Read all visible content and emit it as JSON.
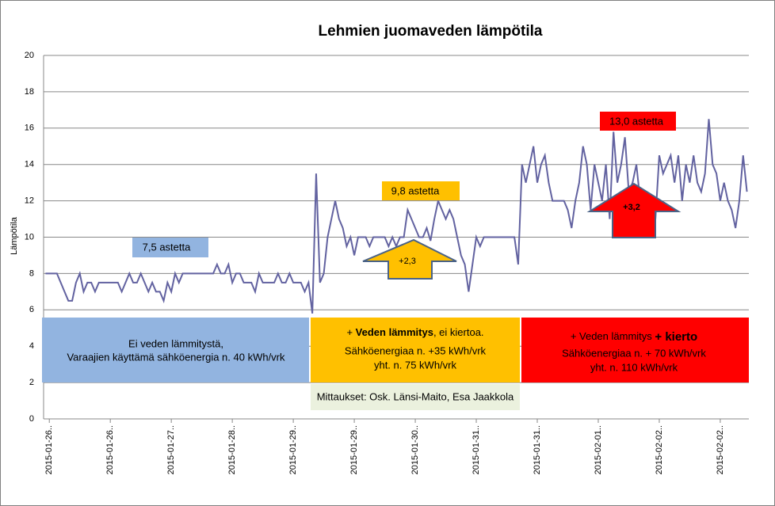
{
  "chart_data": {
    "type": "line",
    "title": "Lehmien juomaveden lämpötila",
    "y_label": "Lämpötila",
    "ylim": [
      0,
      20
    ],
    "yticks": [
      0,
      2,
      4,
      6,
      8,
      10,
      12,
      14,
      16,
      18,
      20
    ],
    "grid": true,
    "categories": [
      null,
      "2015-01-26..",
      null,
      null,
      null,
      null,
      null,
      null,
      null,
      null,
      null,
      null,
      null,
      null,
      null,
      null,
      null,
      "2015-01-26..",
      null,
      null,
      null,
      null,
      null,
      null,
      null,
      null,
      null,
      null,
      null,
      null,
      null,
      null,
      null,
      "2015-01-27..",
      null,
      null,
      null,
      null,
      null,
      null,
      null,
      null,
      null,
      null,
      null,
      null,
      null,
      null,
      null,
      "2015-01-28..",
      null,
      null,
      null,
      null,
      null,
      null,
      null,
      null,
      null,
      null,
      null,
      null,
      null,
      null,
      null,
      "2015-01-29..",
      null,
      null,
      null,
      null,
      null,
      null,
      null,
      null,
      null,
      null,
      null,
      null,
      null,
      null,
      null,
      "2015-01-29..",
      null,
      null,
      null,
      null,
      null,
      null,
      null,
      null,
      null,
      null,
      null,
      null,
      null,
      null,
      null,
      "2015-01-30..",
      null,
      null,
      null,
      null,
      null,
      null,
      null,
      null,
      null,
      null,
      null,
      null,
      null,
      null,
      null,
      "2015-01-31..",
      null,
      null,
      null,
      null,
      null,
      null,
      null,
      null,
      null,
      null,
      null,
      null,
      null,
      null,
      null,
      "2015-01-31..",
      null,
      null,
      null,
      null,
      null,
      null,
      null,
      null,
      null,
      null,
      null,
      null,
      null,
      null,
      null,
      "2015-02-01..",
      null,
      null,
      null,
      null,
      null,
      null,
      null,
      null,
      null,
      null,
      null,
      null,
      null,
      null,
      null,
      "2015-02-02..",
      null,
      null,
      null,
      null,
      null,
      null,
      null,
      null,
      null,
      null,
      null,
      null,
      null,
      null,
      null,
      "2015-02-02..",
      null,
      null,
      null,
      null,
      null,
      null,
      null
    ],
    "series": [
      {
        "color": "#6262a0",
        "values": [
          8,
          8,
          8,
          8,
          7.5,
          7,
          6.5,
          6.5,
          7.5,
          8,
          7,
          7.5,
          7.5,
          7,
          7.5,
          7.5,
          7.5,
          7.5,
          7.5,
          7.5,
          7,
          7.5,
          8,
          7.5,
          7.5,
          8,
          7.5,
          7,
          7.5,
          7,
          7,
          6.5,
          7.5,
          7,
          8,
          7.5,
          8,
          8,
          8,
          8,
          8,
          8,
          8,
          8,
          8,
          8.5,
          8,
          8,
          8.5,
          7.5,
          8,
          8,
          7.5,
          7.5,
          7.5,
          7,
          8,
          7.5,
          7.5,
          7.5,
          7.5,
          8,
          7.5,
          7.5,
          8,
          7.5,
          7.5,
          7.5,
          7,
          7.5,
          5.8,
          13.5,
          7.5,
          8,
          10,
          11,
          12,
          11,
          10.5,
          9.5,
          10,
          9,
          10,
          10,
          10,
          9.5,
          10,
          10,
          10,
          10,
          9.5,
          10,
          9.5,
          10,
          10,
          11.5,
          11,
          10.5,
          10,
          10,
          10.5,
          9.8,
          11,
          12,
          11.5,
          11,
          11.5,
          11,
          10,
          9,
          8.5,
          7,
          8.5,
          10,
          9.5,
          10,
          10,
          10,
          10,
          10,
          10,
          10,
          10,
          10,
          8.5,
          14,
          13,
          14,
          15,
          13,
          14,
          14.5,
          13,
          12,
          12,
          12,
          12,
          11.5,
          10.5,
          12,
          13,
          15,
          14,
          11.5,
          14,
          13,
          12,
          14,
          11,
          15.8,
          13,
          14,
          15.5,
          12.5,
          13,
          14,
          12,
          11,
          12,
          12,
          11,
          14.5,
          13.5,
          14,
          14.5,
          13,
          14.5,
          12,
          14,
          13,
          14.5,
          13,
          12.5,
          13.5,
          16.5,
          14,
          13.5,
          12,
          13,
          12,
          11.5,
          10.5,
          12,
          14.5,
          12.5
        ]
      }
    ],
    "annotations": {
      "level_1": "7,5 astetta",
      "level_2": "9,8 astetta",
      "level_3": "13,0 astetta",
      "arrow_1": "+2,3",
      "arrow_2": "+3,2",
      "box_1": [
        "Ei veden lämmitystä,",
        "Varaajien käyttämä sähköenergia n. 40 kWh/vrk"
      ],
      "box_2": [
        [
          "+ ",
          "Veden lämmitys",
          ", ei kiertoa."
        ],
        "Sähköenergiaa n. +35 kWh/vrk",
        "yht. n. 75 kWh/vrk"
      ],
      "box_3": [
        [
          "+ Veden lämmitys ",
          "+ kierto"
        ],
        "Sähköenergiaa n. + 70 kWh/vrk",
        "yht. n. 110  kWh/vrk"
      ],
      "source": "Mittaukset: Osk. Länsi-Maito, Esa Jaakkola"
    }
  }
}
